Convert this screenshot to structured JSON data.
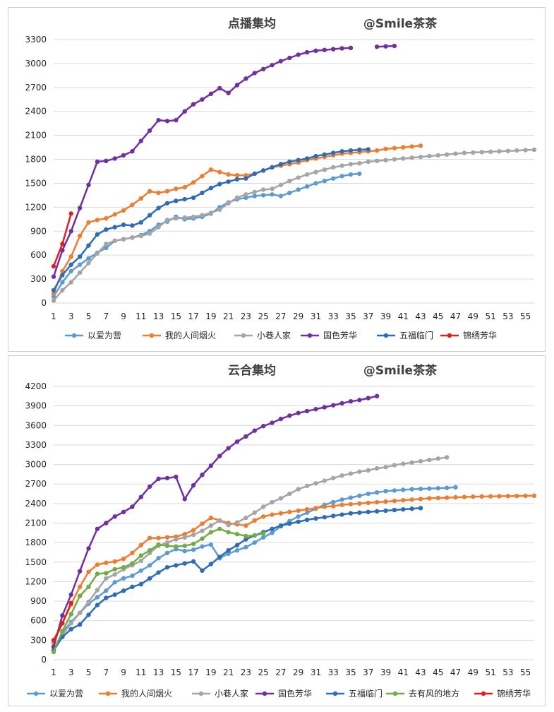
{
  "chart_data": [
    {
      "type": "line",
      "title": "点播集均",
      "watermark": "@Smile茶茶",
      "xlabel": "",
      "ylabel": "",
      "x_ticks": [
        1,
        3,
        5,
        7,
        9,
        11,
        13,
        15,
        17,
        19,
        21,
        23,
        25,
        27,
        29,
        31,
        33,
        35,
        37,
        39,
        41,
        43,
        45,
        47,
        49,
        51,
        53,
        55
      ],
      "y_ticks": [
        0,
        300,
        600,
        900,
        1200,
        1500,
        1800,
        2100,
        2400,
        2700,
        3000,
        3300
      ],
      "xlim": [
        1,
        56
      ],
      "ylim": [
        0,
        3300
      ],
      "grid": true,
      "legend_position": "bottom",
      "series": [
        {
          "name": "以爱为营",
          "color": "#5b9bd5",
          "x": [
            1,
            2,
            3,
            4,
            5,
            6,
            7,
            8,
            9,
            10,
            11,
            12,
            13,
            14,
            15,
            16,
            17,
            18,
            19,
            20,
            21,
            22,
            23,
            24,
            25,
            26,
            27,
            28,
            29,
            30,
            31,
            32,
            33,
            34,
            35,
            36
          ],
          "y": [
            80,
            260,
            400,
            480,
            560,
            630,
            690,
            780,
            800,
            820,
            850,
            900,
            980,
            1020,
            1080,
            1050,
            1060,
            1080,
            1120,
            1200,
            1260,
            1300,
            1320,
            1340,
            1350,
            1360,
            1340,
            1380,
            1420,
            1460,
            1500,
            1530,
            1560,
            1590,
            1610,
            1620
          ]
        },
        {
          "name": "我的人间烟火",
          "color": "#ed7d31",
          "x": [
            1,
            2,
            3,
            4,
            5,
            6,
            7,
            8,
            9,
            10,
            11,
            12,
            13,
            14,
            15,
            16,
            17,
            18,
            19,
            20,
            21,
            22,
            23,
            24,
            25,
            26,
            27,
            28,
            29,
            30,
            31,
            32,
            33,
            34,
            35,
            36,
            37,
            38,
            39,
            40,
            41,
            42,
            43
          ],
          "y": [
            120,
            400,
            580,
            840,
            1010,
            1040,
            1060,
            1110,
            1160,
            1230,
            1310,
            1400,
            1380,
            1400,
            1430,
            1450,
            1510,
            1590,
            1670,
            1640,
            1610,
            1600,
            1600,
            1620,
            1660,
            1700,
            1720,
            1740,
            1760,
            1790,
            1810,
            1830,
            1850,
            1870,
            1880,
            1890,
            1900,
            1910,
            1930,
            1940,
            1950,
            1960,
            1970
          ]
        },
        {
          "name": "小巷人家",
          "color": "#a5a5a5",
          "x": [
            1,
            2,
            3,
            4,
            5,
            6,
            7,
            8,
            9,
            10,
            11,
            12,
            13,
            14,
            15,
            16,
            17,
            18,
            19,
            20,
            21,
            22,
            23,
            24,
            25,
            26,
            27,
            28,
            29,
            30,
            31,
            32,
            33,
            34,
            35,
            36,
            37,
            38,
            39,
            40,
            41,
            42,
            43,
            44,
            45,
            46,
            47,
            48,
            49,
            50,
            51,
            52,
            53,
            54,
            55,
            56
          ],
          "y": [
            30,
            160,
            260,
            380,
            500,
            620,
            740,
            780,
            800,
            820,
            840,
            870,
            950,
            1040,
            1060,
            1070,
            1080,
            1100,
            1130,
            1170,
            1250,
            1320,
            1360,
            1390,
            1420,
            1430,
            1480,
            1530,
            1570,
            1610,
            1640,
            1670,
            1700,
            1720,
            1740,
            1750,
            1770,
            1780,
            1790,
            1800,
            1810,
            1820,
            1830,
            1840,
            1850,
            1860,
            1870,
            1880,
            1885,
            1890,
            1895,
            1900,
            1905,
            1910,
            1915,
            1920
          ]
        },
        {
          "name": "国色芳华",
          "color": "#7030a0",
          "x": [
            1,
            2,
            3,
            4,
            5,
            6,
            7,
            8,
            9,
            10,
            11,
            12,
            13,
            14,
            15,
            16,
            17,
            18,
            19,
            20,
            21,
            22,
            23,
            24,
            25,
            26,
            27,
            28,
            29,
            30,
            31,
            32,
            33,
            34,
            35,
            36,
            38,
            39,
            40
          ],
          "y": [
            330,
            660,
            900,
            1190,
            1480,
            1770,
            1780,
            1810,
            1850,
            1900,
            2030,
            2160,
            2290,
            2280,
            2290,
            2400,
            2490,
            2550,
            2620,
            2690,
            2630,
            2730,
            2810,
            2880,
            2930,
            2980,
            3030,
            3070,
            3110,
            3140,
            3160,
            3170,
            3180,
            3190,
            3195,
            null,
            3210,
            3215,
            3220
          ]
        },
        {
          "name": "五福临门",
          "color": "#2e6cb5",
          "x": [
            1,
            2,
            3,
            4,
            5,
            6,
            7,
            8,
            9,
            10,
            11,
            12,
            13,
            14,
            15,
            16,
            17,
            18,
            19,
            20,
            21,
            22,
            23,
            24,
            25,
            26,
            27,
            28,
            29,
            30,
            31,
            32,
            33,
            34,
            35,
            36,
            37
          ],
          "y": [
            160,
            350,
            480,
            580,
            720,
            860,
            920,
            950,
            980,
            970,
            1010,
            1100,
            1190,
            1250,
            1280,
            1300,
            1320,
            1380,
            1440,
            1490,
            1520,
            1550,
            1560,
            1620,
            1660,
            1700,
            1740,
            1770,
            1790,
            1810,
            1840,
            1860,
            1880,
            1900,
            1910,
            1920,
            1925
          ]
        },
        {
          "name": "锦绣芳华",
          "color": "#e01f1f",
          "x": [
            1,
            2,
            3
          ],
          "y": [
            460,
            740,
            1120
          ]
        }
      ]
    },
    {
      "type": "line",
      "title": "云合集均",
      "watermark": "@Smile茶茶",
      "xlabel": "",
      "ylabel": "",
      "x_ticks": [
        1,
        3,
        5,
        7,
        9,
        11,
        13,
        15,
        17,
        19,
        21,
        23,
        25,
        27,
        29,
        31,
        33,
        35,
        37,
        39,
        41,
        43,
        45,
        47,
        49,
        51,
        53,
        55
      ],
      "y_ticks": [
        0,
        300,
        600,
        900,
        1200,
        1500,
        1800,
        2100,
        2400,
        2700,
        3000,
        3300,
        3600,
        3900,
        4200
      ],
      "xlim": [
        1,
        56
      ],
      "ylim": [
        0,
        4200
      ],
      "grid": true,
      "legend_position": "bottom",
      "series": [
        {
          "name": "以爱为营",
          "color": "#5b9bd5",
          "x": [
            1,
            2,
            3,
            4,
            5,
            6,
            7,
            8,
            9,
            10,
            11,
            12,
            13,
            14,
            15,
            16,
            17,
            18,
            19,
            20,
            21,
            22,
            23,
            24,
            25,
            26,
            27,
            28,
            29,
            30,
            31,
            32,
            33,
            34,
            35,
            36,
            37,
            38,
            39,
            40,
            41,
            42,
            43,
            44,
            45,
            46,
            47
          ],
          "y": [
            150,
            420,
            580,
            720,
            860,
            960,
            1060,
            1190,
            1250,
            1290,
            1370,
            1450,
            1560,
            1640,
            1700,
            1670,
            1690,
            1740,
            1770,
            1560,
            1630,
            1680,
            1730,
            1800,
            1880,
            1950,
            2050,
            2130,
            2200,
            2260,
            2320,
            2380,
            2420,
            2460,
            2490,
            2520,
            2550,
            2570,
            2590,
            2600,
            2610,
            2620,
            2625,
            2630,
            2635,
            2640,
            2650
          ]
        },
        {
          "name": "我的人间烟火",
          "color": "#ed7d31",
          "x": [
            1,
            2,
            3,
            4,
            5,
            6,
            7,
            8,
            9,
            10,
            11,
            12,
            13,
            14,
            15,
            16,
            17,
            18,
            19,
            20,
            21,
            22,
            23,
            24,
            25,
            26,
            27,
            28,
            29,
            30,
            31,
            32,
            33,
            34,
            35,
            36,
            37,
            38,
            39,
            40,
            41,
            42,
            43,
            44,
            45,
            46,
            47,
            48,
            49,
            50,
            51,
            52,
            53,
            54,
            55,
            56
          ],
          "y": [
            260,
            560,
            850,
            1120,
            1350,
            1460,
            1490,
            1510,
            1550,
            1640,
            1760,
            1870,
            1870,
            1880,
            1890,
            1930,
            1990,
            2090,
            2180,
            2140,
            2100,
            2080,
            2060,
            2140,
            2200,
            2230,
            2250,
            2270,
            2290,
            2310,
            2330,
            2350,
            2360,
            2380,
            2390,
            2400,
            2410,
            2420,
            2430,
            2440,
            2450,
            2460,
            2470,
            2480,
            2485,
            2490,
            2495,
            2500,
            2505,
            2508,
            2510,
            2512,
            2514,
            2516,
            2518,
            2520
          ]
        },
        {
          "name": "小巷人家",
          "color": "#a5a5a5",
          "x": [
            1,
            2,
            3,
            4,
            5,
            6,
            7,
            8,
            9,
            10,
            11,
            12,
            13,
            14,
            15,
            16,
            17,
            18,
            19,
            20,
            21,
            22,
            23,
            24,
            25,
            26,
            27,
            28,
            29,
            30,
            31,
            32,
            33,
            34,
            35,
            36,
            37,
            38,
            39,
            40,
            41,
            42,
            43,
            44,
            45,
            46
          ],
          "y": [
            150,
            380,
            560,
            720,
            890,
            1070,
            1250,
            1310,
            1390,
            1450,
            1520,
            1640,
            1750,
            1800,
            1850,
            1880,
            1920,
            1980,
            2060,
            2140,
            2070,
            2110,
            2180,
            2260,
            2350,
            2420,
            2480,
            2550,
            2620,
            2670,
            2710,
            2750,
            2790,
            2830,
            2860,
            2890,
            2910,
            2940,
            2960,
            2990,
            3010,
            3030,
            3050,
            3070,
            3090,
            3110
          ]
        },
        {
          "name": "国色芳华",
          "color": "#7030a0",
          "x": [
            1,
            2,
            3,
            4,
            5,
            6,
            7,
            8,
            9,
            10,
            11,
            12,
            13,
            14,
            15,
            16,
            17,
            18,
            19,
            20,
            21,
            22,
            23,
            24,
            25,
            26,
            27,
            28,
            29,
            30,
            31,
            32,
            33,
            34,
            35,
            36,
            37,
            38
          ],
          "y": [
            200,
            680,
            1000,
            1360,
            1710,
            2010,
            2100,
            2200,
            2270,
            2350,
            2500,
            2660,
            2780,
            2790,
            2810,
            2470,
            2680,
            2840,
            2980,
            3130,
            3250,
            3350,
            3430,
            3520,
            3590,
            3640,
            3700,
            3750,
            3790,
            3820,
            3850,
            3880,
            3910,
            3940,
            3970,
            3990,
            4020,
            4050
          ]
        },
        {
          "name": "五福临门",
          "color": "#2e6cb5",
          "x": [
            1,
            2,
            3,
            4,
            5,
            6,
            7,
            8,
            9,
            10,
            11,
            12,
            13,
            14,
            15,
            16,
            17,
            18,
            19,
            20,
            21,
            22,
            23,
            24,
            25,
            26,
            27,
            28,
            29,
            30,
            31,
            32,
            33,
            34,
            35,
            36,
            37,
            38,
            39,
            40,
            41,
            42,
            43
          ],
          "y": [
            140,
            350,
            470,
            540,
            690,
            840,
            950,
            1000,
            1060,
            1120,
            1160,
            1250,
            1340,
            1420,
            1450,
            1480,
            1510,
            1370,
            1470,
            1580,
            1680,
            1760,
            1850,
            1910,
            1960,
            2010,
            2060,
            2090,
            2120,
            2150,
            2170,
            2190,
            2210,
            2230,
            2250,
            2260,
            2270,
            2280,
            2290,
            2300,
            2310,
            2320,
            2330
          ]
        },
        {
          "name": "去有风的地方",
          "color": "#70ad47",
          "x": [
            1,
            2,
            3,
            4,
            5,
            6,
            7,
            8,
            9,
            10,
            11,
            12,
            13,
            14,
            15,
            16,
            17,
            18,
            19,
            20,
            21,
            22,
            23,
            24,
            25
          ],
          "y": [
            120,
            440,
            700,
            980,
            1120,
            1320,
            1330,
            1390,
            1420,
            1480,
            1600,
            1680,
            1770,
            1750,
            1740,
            1750,
            1780,
            1860,
            1960,
            2010,
            1960,
            1930,
            1900,
            1910,
            1940
          ]
        },
        {
          "name": "锦绣芳华",
          "color": "#e01f1f",
          "x": [
            1,
            2,
            3
          ],
          "y": [
            300,
            560,
            870
          ]
        }
      ]
    }
  ]
}
